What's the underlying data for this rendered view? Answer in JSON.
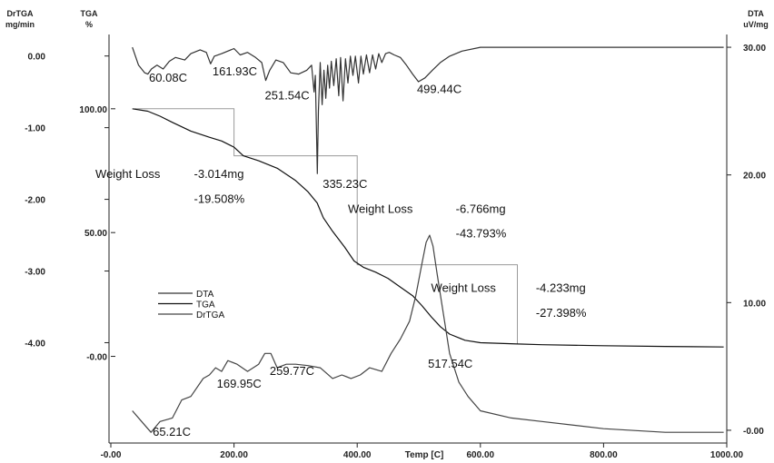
{
  "chart_data": {
    "type": "line",
    "x_axis": {
      "label": "Temp [C]",
      "min": 0,
      "max": 1000,
      "ticks": [
        0,
        200,
        400,
        600,
        800,
        1000
      ],
      "tick_labels": [
        "-0.00",
        "200.00",
        "400.00",
        "600.00",
        "800.00",
        "1000.00"
      ]
    },
    "y_axes": {
      "drtga": {
        "title": "DrTGA",
        "unit": "mg/min",
        "min": -5.4,
        "max": 0.3,
        "ticks": [
          0,
          -1,
          -2,
          -3,
          -4
        ],
        "tick_labels": [
          "0.00",
          "-1.00",
          "-2.00",
          "-3.00",
          "-4.00"
        ]
      },
      "tga": {
        "title": "TGA",
        "unit": "%",
        "min": -35,
        "max": 130,
        "ticks": [
          100,
          50,
          0
        ],
        "tick_labels": [
          "100.00",
          "50.00",
          "-0.00"
        ]
      },
      "dta": {
        "title": "DTA",
        "unit": "uV/mg",
        "min": -1,
        "max": 31,
        "ticks": [
          30,
          20,
          10,
          0
        ],
        "tick_labels": [
          "30.00",
          "20.00",
          "10.00",
          "-0.00"
        ]
      }
    },
    "series": [
      {
        "name": "DTA",
        "axis": "dta",
        "color": "#333333",
        "points": [
          [
            35,
            30.0
          ],
          [
            45,
            28.6
          ],
          [
            55,
            28.0
          ],
          [
            60,
            27.9
          ],
          [
            66,
            28.3
          ],
          [
            75,
            28.6
          ],
          [
            85,
            28.3
          ],
          [
            95,
            28.9
          ],
          [
            105,
            29.2
          ],
          [
            120,
            29.0
          ],
          [
            130,
            29.5
          ],
          [
            145,
            29.8
          ],
          [
            155,
            29.6
          ],
          [
            162,
            28.7
          ],
          [
            168,
            29.3
          ],
          [
            180,
            29.5
          ],
          [
            200,
            29.9
          ],
          [
            210,
            29.4
          ],
          [
            222,
            29.6
          ],
          [
            235,
            29.2
          ],
          [
            245,
            28.8
          ],
          [
            251.5,
            27.4
          ],
          [
            258,
            28.2
          ],
          [
            268,
            29.0
          ],
          [
            280,
            28.8
          ],
          [
            292,
            28.0
          ],
          [
            305,
            27.9
          ],
          [
            318,
            28.2
          ],
          [
            326,
            28.6
          ],
          [
            330,
            26.5
          ],
          [
            332,
            27.8
          ],
          [
            334,
            23.0
          ],
          [
            335.2,
            20.1
          ],
          [
            337,
            25.0
          ],
          [
            340,
            28.8
          ],
          [
            343,
            25.5
          ],
          [
            346,
            28.2
          ],
          [
            349,
            26.0
          ],
          [
            352,
            28.6
          ],
          [
            355,
            26.8
          ],
          [
            358,
            28.9
          ],
          [
            362,
            27.0
          ],
          [
            366,
            29.1
          ],
          [
            370,
            26.2
          ],
          [
            373,
            29.2
          ],
          [
            377,
            25.8
          ],
          [
            381,
            29.1
          ],
          [
            385,
            27.2
          ],
          [
            389,
            29.3
          ],
          [
            393,
            27.8
          ],
          [
            397,
            29.3
          ],
          [
            402,
            27.2
          ],
          [
            406,
            29.3
          ],
          [
            410,
            27.9
          ],
          [
            415,
            29.4
          ],
          [
            420,
            28.0
          ],
          [
            425,
            29.4
          ],
          [
            430,
            28.3
          ],
          [
            435,
            29.5
          ],
          [
            440,
            28.8
          ],
          [
            446,
            29.5
          ],
          [
            452,
            29.6
          ],
          [
            460,
            29.4
          ],
          [
            470,
            29.2
          ],
          [
            480,
            28.6
          ],
          [
            490,
            27.9
          ],
          [
            499.4,
            27.3
          ],
          [
            510,
            27.6
          ],
          [
            522,
            28.2
          ],
          [
            535,
            28.8
          ],
          [
            550,
            29.3
          ],
          [
            570,
            29.7
          ],
          [
            600,
            30.0
          ],
          [
            700,
            30.0
          ],
          [
            800,
            30.0
          ],
          [
            900,
            30.0
          ],
          [
            995,
            30.0
          ]
        ]
      },
      {
        "name": "TGA",
        "axis": "tga",
        "color": "#111111",
        "points": [
          [
            35,
            100.0
          ],
          [
            60,
            99.0
          ],
          [
            80,
            97.0
          ],
          [
            100,
            94.5
          ],
          [
            130,
            91.0
          ],
          [
            160,
            88.5
          ],
          [
            180,
            87.0
          ],
          [
            200,
            84.5
          ],
          [
            215,
            81.0
          ],
          [
            240,
            79.0
          ],
          [
            270,
            76.0
          ],
          [
            300,
            71.0
          ],
          [
            320,
            66.5
          ],
          [
            335,
            62.0
          ],
          [
            345,
            56.0
          ],
          [
            360,
            50.5
          ],
          [
            380,
            44.0
          ],
          [
            395,
            38.5
          ],
          [
            410,
            36.0
          ],
          [
            430,
            34.0
          ],
          [
            450,
            31.5
          ],
          [
            470,
            28.0
          ],
          [
            490,
            24.5
          ],
          [
            505,
            20.5
          ],
          [
            520,
            16.0
          ],
          [
            535,
            12.0
          ],
          [
            550,
            9.0
          ],
          [
            575,
            6.5
          ],
          [
            600,
            5.5
          ],
          [
            660,
            5.0
          ],
          [
            700,
            4.7
          ],
          [
            800,
            4.3
          ],
          [
            900,
            4.0
          ],
          [
            995,
            3.8
          ]
        ]
      },
      {
        "name": "DrTGA",
        "axis": "drtga",
        "color": "#444444",
        "points": [
          [
            35,
            -4.95
          ],
          [
            50,
            -5.1
          ],
          [
            65.2,
            -5.25
          ],
          [
            80,
            -5.1
          ],
          [
            100,
            -5.05
          ],
          [
            115,
            -4.8
          ],
          [
            130,
            -4.75
          ],
          [
            150,
            -4.5
          ],
          [
            160,
            -4.45
          ],
          [
            170,
            -4.35
          ],
          [
            180,
            -4.4
          ],
          [
            190,
            -4.25
          ],
          [
            205,
            -4.3
          ],
          [
            222,
            -4.4
          ],
          [
            240,
            -4.3
          ],
          [
            250,
            -4.15
          ],
          [
            259.8,
            -4.15
          ],
          [
            270,
            -4.35
          ],
          [
            285,
            -4.3
          ],
          [
            300,
            -4.3
          ],
          [
            320,
            -4.32
          ],
          [
            340,
            -4.35
          ],
          [
            360,
            -4.5
          ],
          [
            375,
            -4.45
          ],
          [
            390,
            -4.5
          ],
          [
            405,
            -4.45
          ],
          [
            420,
            -4.35
          ],
          [
            440,
            -4.4
          ],
          [
            455,
            -4.15
          ],
          [
            470,
            -3.95
          ],
          [
            485,
            -3.7
          ],
          [
            495,
            -3.35
          ],
          [
            505,
            -2.9
          ],
          [
            512,
            -2.6
          ],
          [
            517.5,
            -2.5
          ],
          [
            523,
            -2.65
          ],
          [
            530,
            -3.05
          ],
          [
            540,
            -3.6
          ],
          [
            550,
            -4.15
          ],
          [
            565,
            -4.55
          ],
          [
            580,
            -4.75
          ],
          [
            600,
            -4.95
          ],
          [
            650,
            -5.05
          ],
          [
            700,
            -5.1
          ],
          [
            800,
            -5.2
          ],
          [
            900,
            -5.25
          ],
          [
            995,
            -5.25
          ]
        ]
      }
    ],
    "step_lines": {
      "axis": "tga",
      "points": [
        [
          38,
          100
        ],
        [
          200,
          100
        ],
        [
          200,
          81
        ],
        [
          400,
          81
        ],
        [
          400,
          37
        ],
        [
          660,
          37
        ],
        [
          660,
          5
        ]
      ]
    },
    "annotations": [
      {
        "text": "60.08C",
        "x": 62,
        "axis": "dta",
        "y": 27.3
      },
      {
        "text": "161.93C",
        "x": 165,
        "axis": "dta",
        "y": 27.8
      },
      {
        "text": "251.54C",
        "x": 250,
        "axis": "dta",
        "y": 25.9
      },
      {
        "text": "499.44C",
        "x": 497,
        "axis": "dta",
        "y": 26.4
      },
      {
        "text": "335.23C",
        "x": 344,
        "axis": "dta",
        "y": 19.0
      },
      {
        "text": "Weight Loss",
        "x": -25,
        "axis": "tga",
        "y": 72
      },
      {
        "text": "-3.014mg",
        "x": 135,
        "axis": "tga",
        "y": 72
      },
      {
        "text": "-19.508%",
        "x": 135,
        "axis": "tga",
        "y": 62
      },
      {
        "text": "Weight Loss",
        "x": 385,
        "axis": "tga",
        "y": 58
      },
      {
        "text": "-6.766mg",
        "x": 560,
        "axis": "tga",
        "y": 58
      },
      {
        "text": "-43.793%",
        "x": 560,
        "axis": "tga",
        "y": 48
      },
      {
        "text": "Weight Loss",
        "x": 520,
        "axis": "tga",
        "y": 26
      },
      {
        "text": "-4.233mg",
        "x": 690,
        "axis": "tga",
        "y": 26
      },
      {
        "text": "-27.398%",
        "x": 690,
        "axis": "tga",
        "y": 16
      },
      {
        "text": "65.21C",
        "x": 68,
        "axis": "drtga",
        "y": -5.3
      },
      {
        "text": "169.95C",
        "x": 172,
        "axis": "drtga",
        "y": -4.63
      },
      {
        "text": "259.77C",
        "x": 258,
        "axis": "drtga",
        "y": -4.45
      },
      {
        "text": "517.54C",
        "x": 515,
        "axis": "drtga",
        "y": -4.35
      }
    ],
    "legend": {
      "position": "center-left",
      "entries": [
        "DTA",
        "TGA",
        "DrTGA"
      ]
    },
    "grid": false
  }
}
